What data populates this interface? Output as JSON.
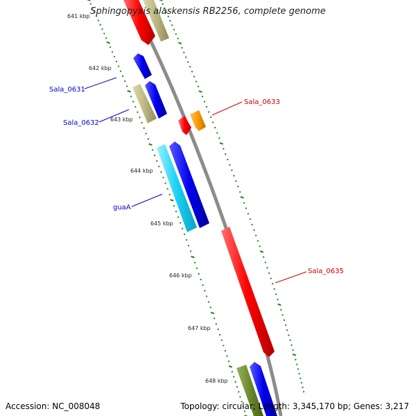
{
  "title": "Sphingopyxis alaskensis RB2256, complete genome",
  "footer": {
    "accession": "Accession: NC_008048",
    "summary": "Topology: circular; Length: 3,345,170 bp; Genes: 3,217"
  },
  "colors": {
    "backbone": "#8c8c8c",
    "tick": "#1a7f1a",
    "label_blue": "#0000cc",
    "label_red": "#cc0000"
  },
  "tick_labels": [
    "641 kbp",
    "642 kbp",
    "643 kbp",
    "644 kbp",
    "645 kbp",
    "646 kbp",
    "647 kbp",
    "648 kbp"
  ],
  "gene_labels": {
    "sala_0631": "Sala_0631",
    "sala_0632": "Sala_0632",
    "sala_0633": "Sala_0633",
    "guaa": "guaA",
    "sala_0635": "Sala_0635"
  }
}
